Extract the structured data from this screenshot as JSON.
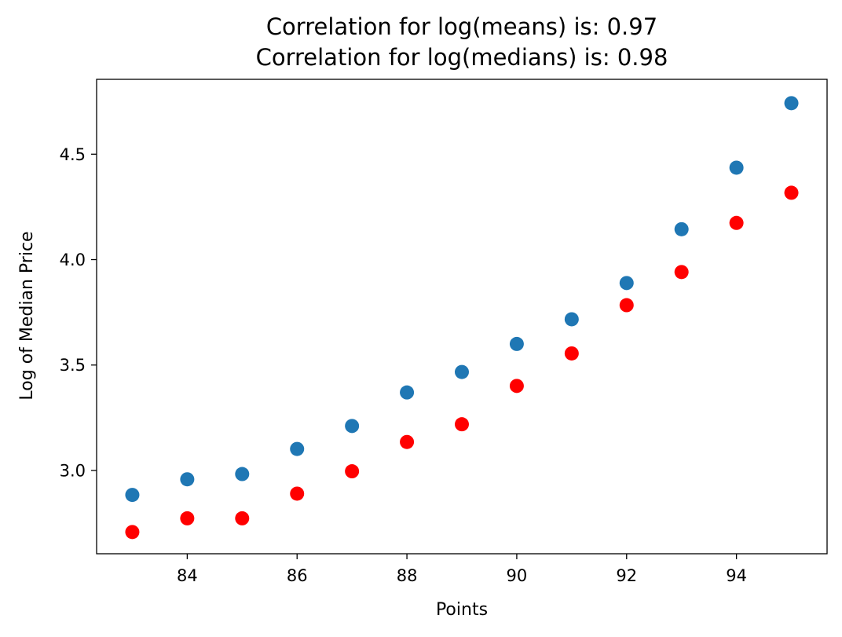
{
  "chart_data": {
    "type": "scatter",
    "title_lines": [
      "Correlation for log(means) is: 0.97",
      "Correlation for log(medians) is: 0.98"
    ],
    "xlabel": "Points",
    "ylabel": "Log of Median Price",
    "xlim": [
      82.35,
      95.65
    ],
    "ylim": [
      2.605,
      4.855
    ],
    "x_ticks": [
      84,
      86,
      88,
      90,
      92,
      94
    ],
    "x_tick_labels": [
      "84",
      "86",
      "88",
      "90",
      "92",
      "94"
    ],
    "y_ticks": [
      3.0,
      3.5,
      4.0,
      4.5
    ],
    "y_tick_labels": [
      "3.0",
      "3.5",
      "4.0",
      "4.5"
    ],
    "grid": false,
    "legend": "none",
    "series": [
      {
        "color": "#1f77b4",
        "x": [
          83,
          84,
          85,
          86,
          87,
          88,
          89,
          90,
          91,
          92,
          93,
          94,
          95
        ],
        "y": [
          2.884,
          2.958,
          2.983,
          3.102,
          3.211,
          3.37,
          3.467,
          3.6,
          3.717,
          3.889,
          4.144,
          4.436,
          4.742
        ]
      },
      {
        "color": "#ff0000",
        "x": [
          83,
          84,
          85,
          86,
          87,
          88,
          89,
          90,
          91,
          92,
          93,
          94,
          95
        ],
        "y": [
          2.708,
          2.773,
          2.773,
          2.89,
          2.996,
          3.135,
          3.219,
          3.401,
          3.555,
          3.784,
          3.941,
          4.174,
          4.317
        ]
      }
    ]
  }
}
